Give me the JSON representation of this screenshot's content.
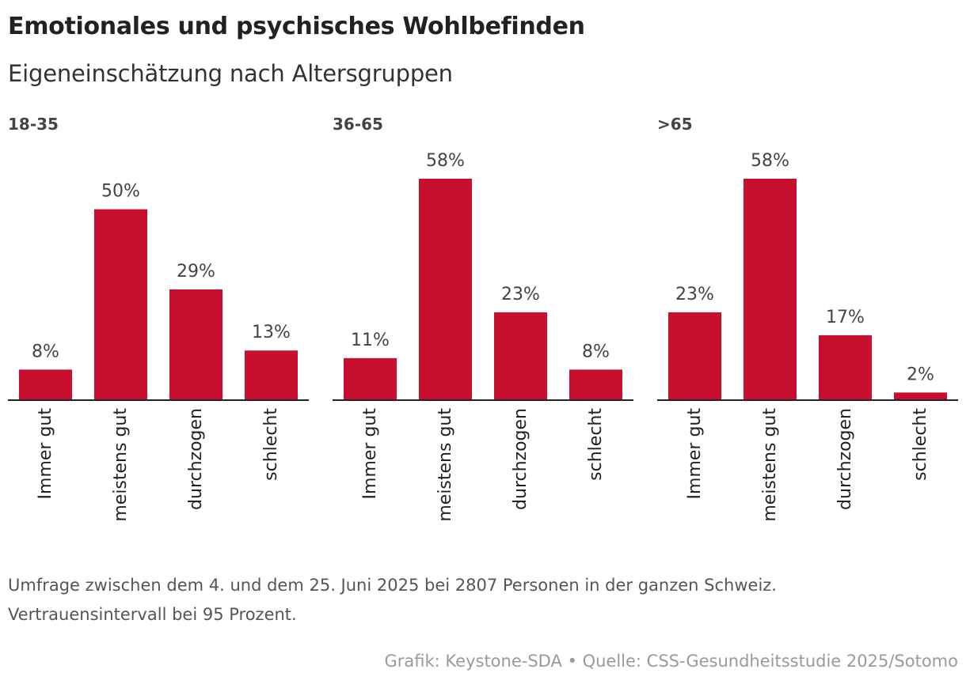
{
  "header": {
    "title": "Emotionales und psychisches Wohlbefinden",
    "subtitle": "Eigeneinschätzung nach Altersgruppen"
  },
  "footer": {
    "note_line1": "Umfrage zwischen dem 4. und dem 25. Juni 2025 bei 2807 Personen in der ganzen Schweiz.",
    "note_line2": "Vertrauensintervall bei 95 Prozent.",
    "source": "Grafik: Keystone-SDA • Quelle: CSS-Gesundheitsstudie 2025/Sotomo"
  },
  "colors": {
    "bar": "#c8102e",
    "axis": "#222222",
    "value_label": "#444444",
    "panel_label": "#444444",
    "category_label": "#222222"
  },
  "chart_data": [
    {
      "type": "bar",
      "title": "18-35",
      "categories": [
        "Immer gut",
        "meistens gut",
        "durchzogen",
        "schlecht"
      ],
      "values": [
        8,
        50,
        29,
        13
      ],
      "value_labels": [
        "8%",
        "50%",
        "29%",
        "13%"
      ],
      "ylim": [
        0,
        58
      ],
      "grid": false
    },
    {
      "type": "bar",
      "title": "36-65",
      "categories": [
        "Immer gut",
        "meistens gut",
        "durchzogen",
        "schlecht"
      ],
      "values": [
        11,
        58,
        23,
        8
      ],
      "value_labels": [
        "11%",
        "58%",
        "23%",
        "8%"
      ],
      "ylim": [
        0,
        58
      ],
      "grid": false
    },
    {
      "type": "bar",
      "title": ">65",
      "categories": [
        "Immer gut",
        "meistens gut",
        "durchzogen",
        "schlecht"
      ],
      "values": [
        23,
        58,
        17,
        2
      ],
      "value_labels": [
        "23%",
        "58%",
        "17%",
        "2%"
      ],
      "ylim": [
        0,
        58
      ],
      "grid": false
    }
  ]
}
